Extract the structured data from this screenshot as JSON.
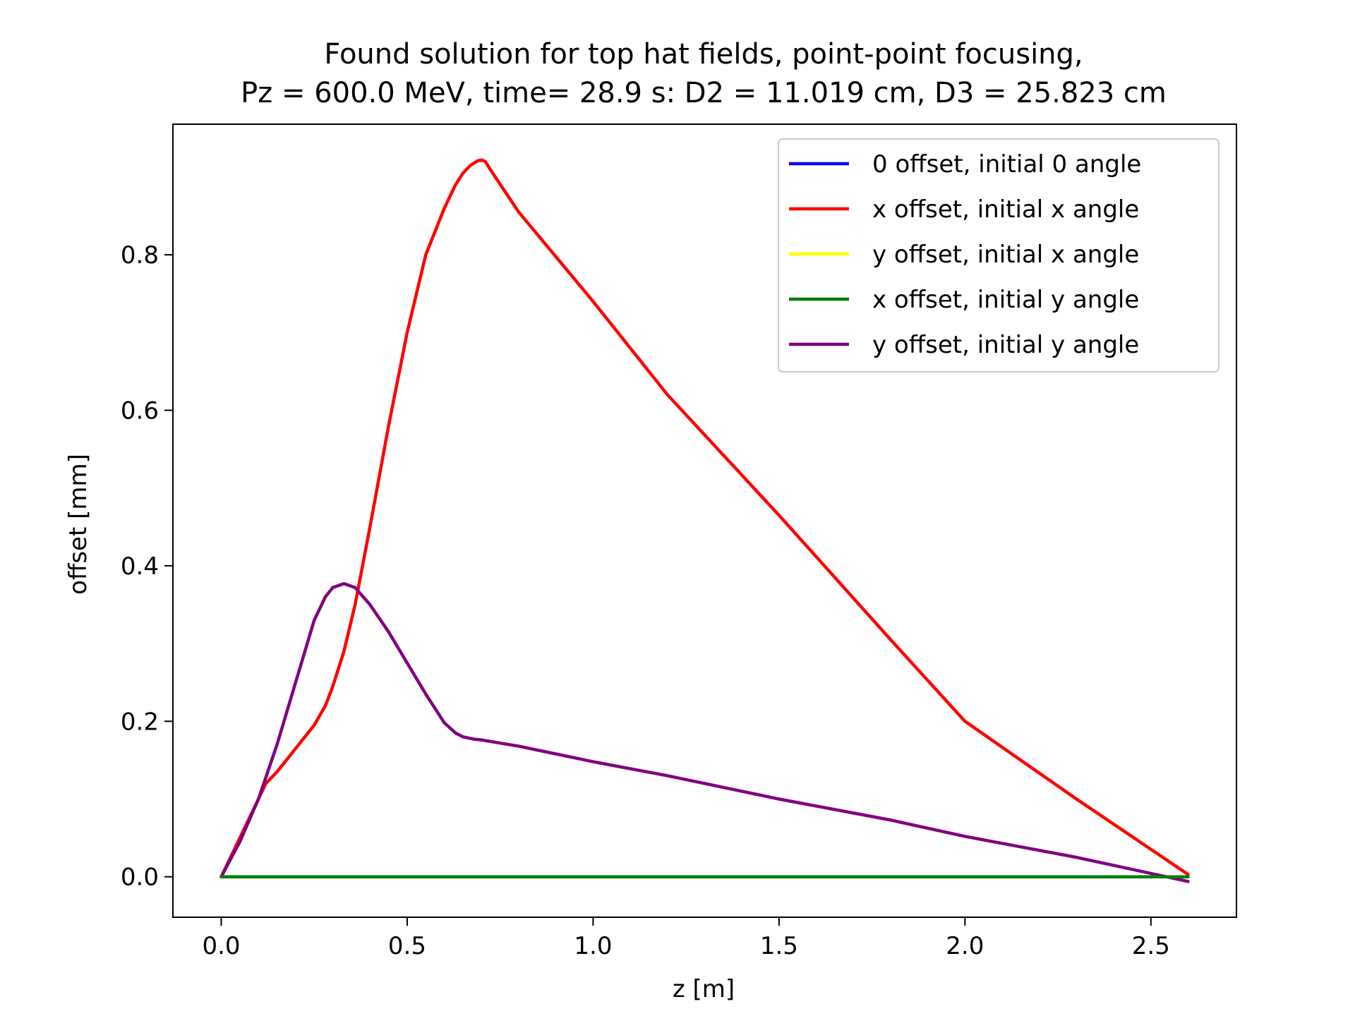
{
  "chart_data": {
    "type": "line",
    "title": [
      "Found solution for top hat fields, point-point focusing,",
      "Pz = 600.0 MeV, time= 28.9 s: D2 = 11.019 cm, D3 = 25.823 cm"
    ],
    "xlabel": "z [m]",
    "ylabel": "offset [mm]",
    "xlim": [
      -0.13,
      2.73
    ],
    "ylim": [
      -0.052,
      0.968
    ],
    "xticks": [
      0.0,
      0.5,
      1.0,
      1.5,
      2.0,
      2.5
    ],
    "xtick_labels": [
      "0.0",
      "0.5",
      "1.0",
      "1.5",
      "2.0",
      "2.5"
    ],
    "yticks": [
      0.0,
      0.2,
      0.4,
      0.6,
      0.8
    ],
    "ytick_labels": [
      "0.0",
      "0.2",
      "0.4",
      "0.6",
      "0.8"
    ],
    "grid": false,
    "legend_position": "top-right",
    "series": [
      {
        "name": "0 offset, initial 0 angle",
        "color": "#0000ff",
        "x": [
          0.0,
          2.6
        ],
        "y": [
          0.0,
          0.0
        ]
      },
      {
        "name": "x offset, initial x angle",
        "color": "#ff0000",
        "x": [
          0.0,
          0.05,
          0.1,
          0.12,
          0.15,
          0.2,
          0.25,
          0.28,
          0.3,
          0.33,
          0.36,
          0.4,
          0.45,
          0.5,
          0.55,
          0.6,
          0.63,
          0.65,
          0.67,
          0.69,
          0.7,
          0.71,
          0.73,
          0.8,
          1.0,
          1.2,
          1.5,
          1.8,
          2.0,
          2.3,
          2.6
        ],
        "y": [
          0.0,
          0.05,
          0.1,
          0.12,
          0.135,
          0.165,
          0.195,
          0.22,
          0.245,
          0.29,
          0.35,
          0.45,
          0.58,
          0.7,
          0.8,
          0.86,
          0.89,
          0.905,
          0.915,
          0.921,
          0.922,
          0.92,
          0.905,
          0.855,
          0.74,
          0.62,
          0.465,
          0.305,
          0.2,
          0.1,
          0.003
        ]
      },
      {
        "name": "y offset, initial x angle",
        "color": "#ffff00",
        "x": [
          0.0,
          2.6
        ],
        "y": [
          0.0,
          0.0
        ]
      },
      {
        "name": "x offset, initial y angle",
        "color": "#008000",
        "x": [
          0.0,
          2.6
        ],
        "y": [
          0.0,
          0.0
        ]
      },
      {
        "name": "y offset, initial y angle",
        "color": "#800080",
        "x": [
          0.0,
          0.05,
          0.1,
          0.15,
          0.2,
          0.25,
          0.28,
          0.3,
          0.33,
          0.36,
          0.4,
          0.45,
          0.5,
          0.55,
          0.6,
          0.63,
          0.65,
          0.68,
          0.7,
          0.75,
          0.8,
          1.0,
          1.2,
          1.5,
          1.8,
          2.0,
          2.3,
          2.6
        ],
        "y": [
          0.0,
          0.045,
          0.1,
          0.17,
          0.25,
          0.33,
          0.36,
          0.372,
          0.377,
          0.372,
          0.35,
          0.315,
          0.275,
          0.235,
          0.198,
          0.185,
          0.18,
          0.177,
          0.176,
          0.172,
          0.168,
          0.148,
          0.13,
          0.1,
          0.073,
          0.052,
          0.025,
          -0.006
        ]
      }
    ]
  }
}
